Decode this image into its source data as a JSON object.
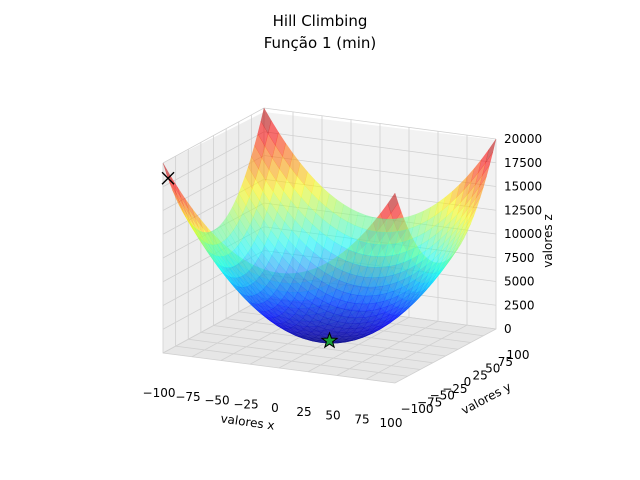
{
  "chart_data": {
    "type": "surface3d",
    "title": "Hill Climbing",
    "subtitle": "Função 1 (min)",
    "xlabel": "valores x",
    "ylabel": "valores y",
    "zlabel": "valores z",
    "function": "x^2 + y^2",
    "xlim": [
      -100,
      100
    ],
    "ylim": [
      -100,
      100
    ],
    "zlim": [
      0,
      20000
    ],
    "x_ticks": [
      "−100",
      "−75",
      "−50",
      "−25",
      "0",
      "25",
      "50",
      "75",
      "100"
    ],
    "y_ticks": [
      "−100",
      "−75",
      "−50",
      "−25",
      "0",
      "25",
      "50",
      "75",
      "100"
    ],
    "z_ticks": [
      "0",
      "2500",
      "5000",
      "7500",
      "10000",
      "12500",
      "15000",
      "17500",
      "20000"
    ],
    "grid": true,
    "colormap": "jet",
    "points": [
      {
        "marker": "x",
        "x": -100,
        "y": -90,
        "z": 18100,
        "color": "#000000"
      },
      {
        "marker": "star",
        "x": 0,
        "y": 0,
        "z": 0,
        "color": "#1a9e3a"
      }
    ]
  }
}
